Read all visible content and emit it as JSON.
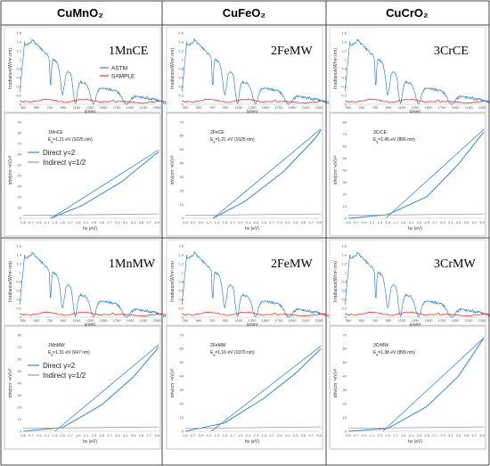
{
  "headers": [
    "CuMnO₂",
    "CuFeO₂",
    "CuCrO₂"
  ],
  "legend_irr": {
    "astm": "ASTM",
    "sample": "SAMPLE"
  },
  "legend_tauc": {
    "direct": "Direct γ=2",
    "indirect": "Indirect γ=1/2"
  },
  "irr_axes": {
    "ylabel": "Irradiance(W/m².nm)",
    "xlabel": "λ(nm)",
    "yticks": [
      "0",
      "0.2",
      "0.4",
      "0.6",
      "0.8",
      "1",
      "1.2",
      "1.4",
      "1.6"
    ],
    "xticks": [
      "350",
      "550",
      "750",
      "950",
      "1150",
      "1350",
      "1550",
      "1750",
      "1950",
      "2150",
      "2350"
    ]
  },
  "tauc_axes": {
    "ylabel": "αhv(cm⁻¹eV)¹⁄²",
    "xlabel": "hv (eV)",
    "xticks": [
      "0.5",
      "0.7",
      "0.9",
      "1.1",
      "1.3",
      "1.5",
      "1.7",
      "1.9",
      "2.1",
      "2.3",
      "2.5",
      "2.7",
      "2.9",
      "3.1",
      "3.3",
      "3.5",
      "3.7",
      "3.9"
    ]
  },
  "panels": [
    {
      "irr_label": "1MnCE",
      "show_irr_legend": true,
      "tauc_label": "1MnCE",
      "eg_value": "=1.21 eV (1025 nm)",
      "show_tauc_legend": true,
      "yticks": [
        "0",
        "10",
        "20",
        "30",
        "40",
        "50",
        "60",
        "70",
        "80",
        "90"
      ],
      "ymax": 90,
      "direct": [
        [
          1.2,
          0
        ],
        [
          2,
          12
        ],
        [
          3,
          34
        ],
        [
          3.8,
          58
        ],
        [
          3.95,
          62
        ]
      ],
      "tangent": [
        [
          1.21,
          0
        ],
        [
          3.95,
          64
        ]
      ]
    },
    {
      "irr_label": "2FeMW",
      "show_irr_legend": false,
      "tauc_label": "2FeCE",
      "eg_value": "=1.21 eV (1025 nm)",
      "show_tauc_legend": false,
      "yticks": [
        "0",
        "10",
        "20",
        "30",
        "40",
        "50",
        "60",
        "70"
      ],
      "ymax": 70,
      "direct": [
        [
          1.2,
          0
        ],
        [
          2,
          12
        ],
        [
          3,
          34
        ],
        [
          3.8,
          58
        ],
        [
          3.95,
          64
        ]
      ],
      "tangent": [
        [
          1.21,
          0
        ],
        [
          3.95,
          65
        ]
      ]
    },
    {
      "irr_label": "3CrCE",
      "show_irr_legend": false,
      "tauc_label": "3CrCE",
      "eg_value": "=1.45 eV (856 nm)",
      "show_tauc_legend": false,
      "yticks": [
        "0",
        "10",
        "20",
        "30",
        "40",
        "50",
        "60",
        "70",
        "80"
      ],
      "ymax": 80,
      "direct": [
        [
          0.5,
          0
        ],
        [
          1.5,
          3
        ],
        [
          2.5,
          18
        ],
        [
          3.3,
          45
        ],
        [
          3.95,
          72
        ]
      ],
      "tangent": [
        [
          1.45,
          0
        ],
        [
          3.95,
          74
        ]
      ]
    },
    {
      "irr_label": "1MnMW",
      "show_irr_legend": false,
      "tauc_label": "1MnMW",
      "eg_value": "=1.31 eV (947 nm)",
      "show_tauc_legend": true,
      "yticks": [
        "0",
        "10",
        "20",
        "30",
        "40",
        "50",
        "60",
        "70",
        "80"
      ],
      "ymax": 80,
      "direct": [
        [
          0.5,
          0
        ],
        [
          1.5,
          3
        ],
        [
          2.5,
          22
        ],
        [
          3.3,
          45
        ],
        [
          3.95,
          70
        ]
      ],
      "tangent": [
        [
          1.31,
          0
        ],
        [
          3.95,
          72
        ]
      ]
    },
    {
      "irr_label": "2FeMW",
      "show_irr_legend": false,
      "tauc_label": "2FeMW",
      "eg_value": "=1.16 eV (1070 nm)",
      "show_tauc_legend": false,
      "yticks": [
        "0",
        "10",
        "20",
        "30",
        "40",
        "50",
        "60",
        "70"
      ],
      "ymax": 70,
      "direct": [
        [
          0.5,
          0
        ],
        [
          1.5,
          6
        ],
        [
          2.5,
          24
        ],
        [
          3.3,
          42
        ],
        [
          3.95,
          60
        ]
      ],
      "tangent": [
        [
          1.16,
          0
        ],
        [
          3.95,
          62
        ]
      ]
    },
    {
      "irr_label": "3CrMW",
      "show_irr_legend": false,
      "tauc_label": "3CrMW",
      "eg_value": "=1.38 eV (899 nm)",
      "show_tauc_legend": false,
      "yticks": [
        "0",
        "10",
        "20",
        "30",
        "40",
        "50",
        "60",
        "70"
      ],
      "ymax": 70,
      "direct": [
        [
          0.5,
          0
        ],
        [
          1.5,
          2
        ],
        [
          2.5,
          18
        ],
        [
          3.3,
          40
        ],
        [
          3.95,
          68
        ]
      ],
      "tangent": [
        [
          1.38,
          0
        ],
        [
          3.95,
          68
        ]
      ]
    }
  ]
}
